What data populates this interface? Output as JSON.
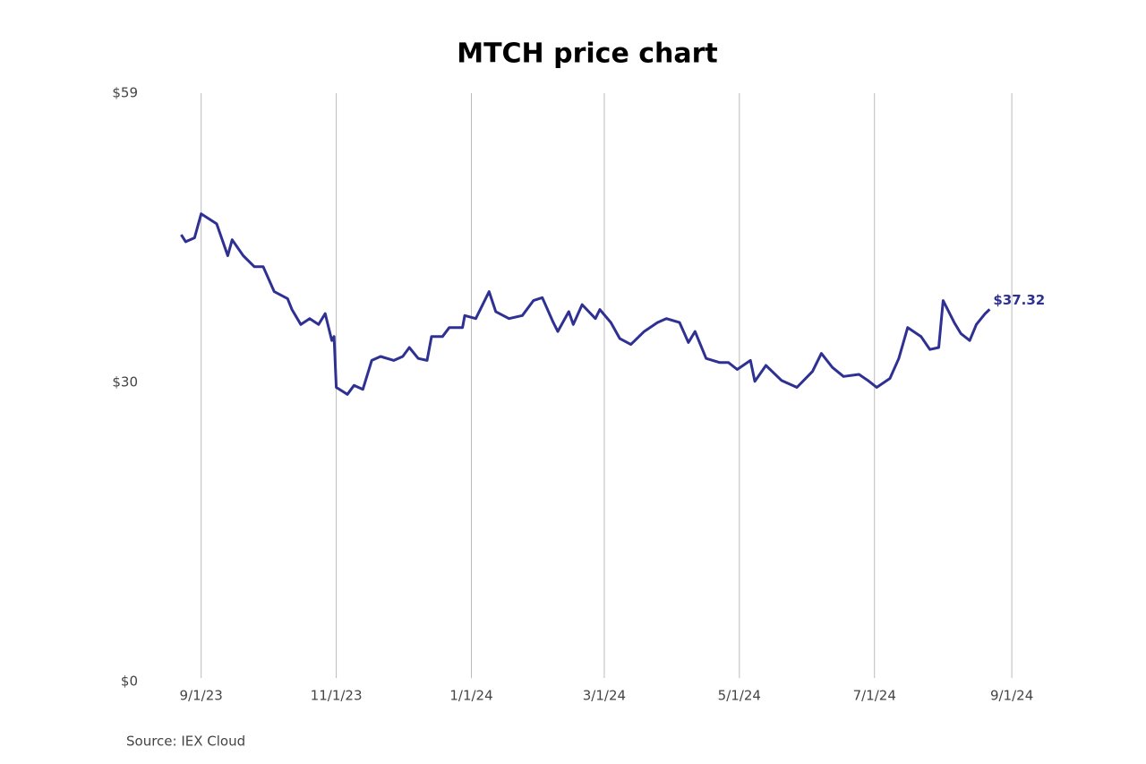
{
  "chart_data": {
    "type": "line",
    "title": "MTCH price chart",
    "source": "Source: IEX Cloud",
    "x": [
      "2023-08-23",
      "2023-08-25",
      "2023-08-29",
      "2023-09-01",
      "2023-09-08",
      "2023-09-13",
      "2023-09-15",
      "2023-09-20",
      "2023-09-25",
      "2023-09-29",
      "2023-10-04",
      "2023-10-10",
      "2023-10-12",
      "2023-10-16",
      "2023-10-20",
      "2023-10-24",
      "2023-10-27",
      "2023-10-30",
      "2023-10-31",
      "2023-11-01",
      "2023-11-06",
      "2023-11-09",
      "2023-11-13",
      "2023-11-17",
      "2023-11-21",
      "2023-11-27",
      "2023-12-01",
      "2023-12-04",
      "2023-12-08",
      "2023-12-12",
      "2023-12-14",
      "2023-12-19",
      "2023-12-22",
      "2023-12-28",
      "2023-12-29",
      "2024-01-03",
      "2024-01-09",
      "2024-01-12",
      "2024-01-18",
      "2024-01-24",
      "2024-01-29",
      "2024-02-02",
      "2024-02-07",
      "2024-02-09",
      "2024-02-14",
      "2024-02-16",
      "2024-02-20",
      "2024-02-26",
      "2024-02-28",
      "2024-03-04",
      "2024-03-08",
      "2024-03-13",
      "2024-03-19",
      "2024-03-25",
      "2024-03-29",
      "2024-04-04",
      "2024-04-08",
      "2024-04-11",
      "2024-04-16",
      "2024-04-22",
      "2024-04-26",
      "2024-04-30",
      "2024-05-06",
      "2024-05-08",
      "2024-05-13",
      "2024-05-20",
      "2024-05-27",
      "2024-06-03",
      "2024-06-07",
      "2024-06-12",
      "2024-06-17",
      "2024-06-24",
      "2024-06-28",
      "2024-07-02",
      "2024-07-08",
      "2024-07-12",
      "2024-07-16",
      "2024-07-22",
      "2024-07-26",
      "2024-07-30",
      "2024-08-01",
      "2024-08-06",
      "2024-08-09",
      "2024-08-13",
      "2024-08-16",
      "2024-08-20",
      "2024-08-22"
    ],
    "series": [
      {
        "name": "MTCH",
        "color": "#2e3192",
        "values": [
          44.8,
          44.1,
          44.5,
          46.9,
          45.9,
          42.7,
          44.3,
          42.7,
          41.6,
          41.6,
          39.1,
          38.4,
          37.3,
          35.8,
          36.4,
          35.8,
          36.9,
          34.2,
          34.6,
          29.5,
          28.8,
          29.7,
          29.3,
          32.2,
          32.6,
          32.2,
          32.6,
          33.5,
          32.4,
          32.2,
          34.6,
          34.6,
          35.5,
          35.5,
          36.7,
          36.4,
          39.1,
          37.1,
          36.4,
          36.7,
          38.2,
          38.5,
          36.0,
          35.1,
          37.1,
          35.8,
          37.8,
          36.4,
          37.3,
          36.0,
          34.4,
          33.8,
          35.1,
          36.0,
          36.4,
          36.0,
          34.0,
          35.1,
          32.4,
          32.0,
          32.0,
          31.3,
          32.2,
          30.1,
          31.7,
          30.2,
          29.5,
          31.1,
          32.9,
          31.5,
          30.6,
          30.8,
          30.2,
          29.5,
          30.4,
          32.4,
          35.5,
          34.6,
          33.3,
          33.5,
          38.2,
          36.0,
          34.9,
          34.2,
          35.8,
          36.9,
          37.32
        ],
        "value_labels": [
          null,
          null,
          null,
          null,
          null,
          null,
          null,
          null,
          null,
          null,
          null,
          null,
          null,
          null,
          null,
          null,
          null,
          null,
          null,
          null,
          null,
          null,
          null,
          null,
          null,
          null,
          null,
          null,
          null,
          null,
          null,
          null,
          null,
          null,
          null,
          null,
          null,
          null,
          null,
          null,
          null,
          null,
          null,
          null,
          null,
          null,
          null,
          null,
          null,
          null,
          null,
          null,
          null,
          null,
          null,
          null,
          null,
          null,
          null,
          null,
          null,
          null,
          null,
          null,
          null,
          null,
          null,
          null,
          null,
          null,
          null,
          null,
          null,
          null,
          null,
          null,
          null,
          null,
          null,
          null,
          null,
          null,
          null,
          null,
          null,
          null,
          "$37.32"
        ]
      }
    ],
    "xlim": [
      "2023-08-20",
      "2024-09-05"
    ],
    "xticks": [
      {
        "value": "2023-09-01",
        "label": "9/1/23"
      },
      {
        "value": "2023-11-01",
        "label": "11/1/23"
      },
      {
        "value": "2024-01-01",
        "label": "1/1/24"
      },
      {
        "value": "2024-03-01",
        "label": "3/1/24"
      },
      {
        "value": "2024-05-01",
        "label": "5/1/24"
      },
      {
        "value": "2024-07-01",
        "label": "7/1/24"
      },
      {
        "value": "2024-09-01",
        "label": "9/1/24"
      }
    ],
    "ylim": [
      0,
      59
    ],
    "yticks": [
      {
        "value": 0,
        "label": "$0"
      },
      {
        "value": 30,
        "label": "$30"
      },
      {
        "value": 59,
        "label": "$59"
      }
    ],
    "grid": "x"
  }
}
